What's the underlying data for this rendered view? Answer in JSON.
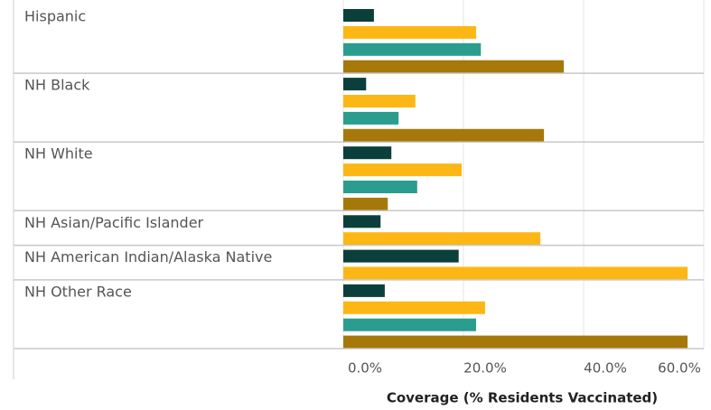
{
  "chart_data": {
    "type": "bar",
    "orientation": "horizontal",
    "x_label": "Coverage (% Residents Vaccinated)",
    "categories": [
      "Hispanic",
      "NH Black",
      "NH White",
      "NH Asian/Pacific Islander",
      "NH American Indian/Alaska Native",
      "NH Other Race"
    ],
    "series": [
      {
        "color": "#0b3f3b",
        "values": [
          5.1,
          3.8,
          8.0,
          6.2,
          19.2,
          6.9
        ]
      },
      {
        "color": "#fdb714",
        "values": [
          22.1,
          12.0,
          19.7,
          32.8,
          57.3,
          23.6
        ]
      },
      {
        "color": "#2a9d8f",
        "values": [
          22.9,
          9.2,
          12.3,
          null,
          null,
          22.1
        ]
      },
      {
        "color": "#a6780a",
        "values": [
          36.7,
          33.4,
          7.4,
          null,
          null,
          57.3
        ]
      }
    ],
    "xlim": [
      0,
      60
    ],
    "xticks": [
      {
        "value": 0,
        "label": "0.0%"
      },
      {
        "value": 20,
        "label": "20.0%"
      },
      {
        "value": 40,
        "label": "40.0%"
      },
      {
        "value": 60,
        "label": "60.0%"
      }
    ],
    "grid": true
  }
}
